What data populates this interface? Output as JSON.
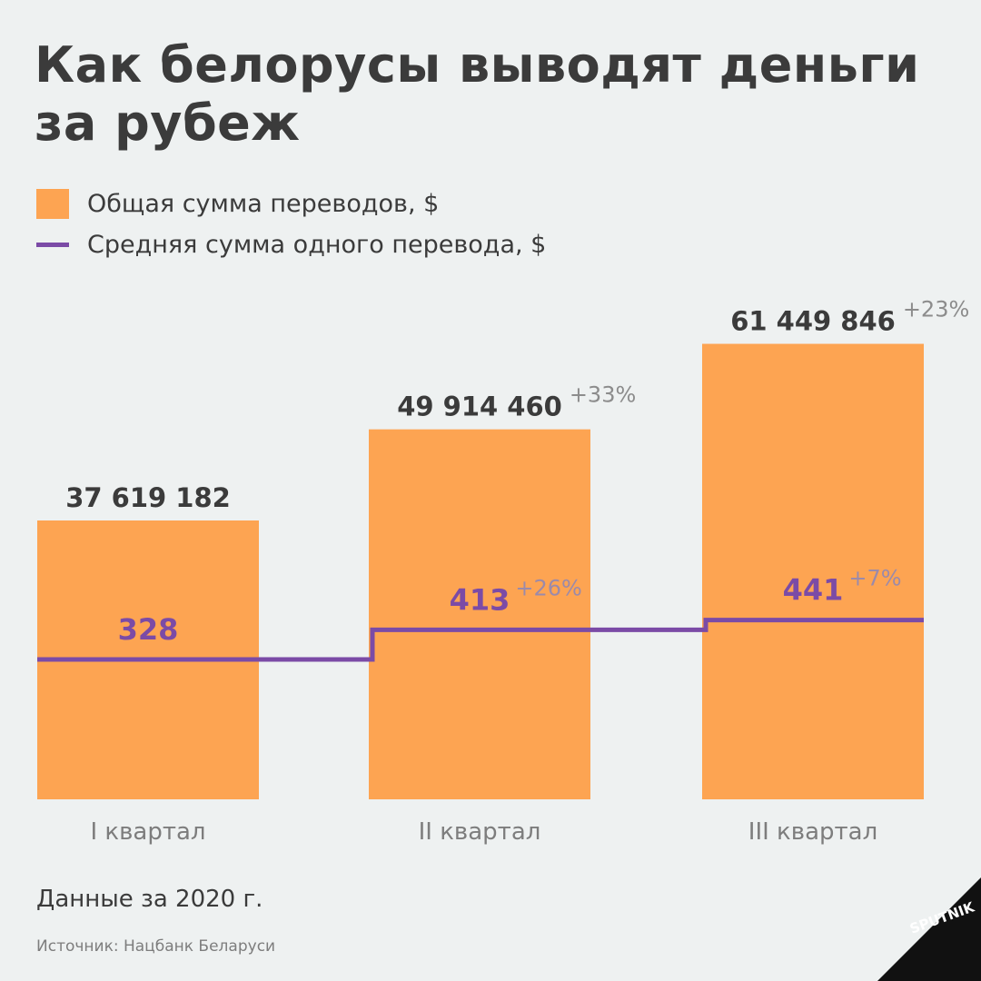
{
  "title": "Как белорусы выводят деньги за рубеж",
  "legend": {
    "total_label": "Общая сумма переводов, $",
    "average_label": "Средняя сумма одного перевода, $"
  },
  "note": "Данные за 2020 г.",
  "source": "Источник: Нацбанк Беларуси",
  "logo_text": "SPUTNIK",
  "colors": {
    "bar": "#fda452",
    "line": "#7b4ba6",
    "value_text": "#3b3b3b",
    "change_text": "#8c8c8c",
    "axis_text": "#7d7d7d",
    "background": "#eef1f1"
  },
  "chart_data": {
    "type": "bar",
    "categories": [
      "I квартал",
      "II квартал",
      "III квартал"
    ],
    "series": [
      {
        "name": "Общая сумма переводов, $",
        "type": "bar",
        "values": [
          37619182,
          49914460,
          61449846
        ],
        "labels": [
          "37 619 182",
          "49 914 460",
          "61 449 846"
        ],
        "changes": [
          "",
          "+33%",
          "+23%"
        ]
      },
      {
        "name": "Средняя сумма одного перевода, $",
        "type": "step",
        "values": [
          328,
          413,
          441
        ],
        "labels": [
          "328",
          "413",
          "441"
        ],
        "changes": [
          "",
          "+26%",
          "+7%"
        ]
      }
    ],
    "xlabel": "",
    "ylabel": "",
    "grid": false,
    "legend_position": "top-left"
  }
}
